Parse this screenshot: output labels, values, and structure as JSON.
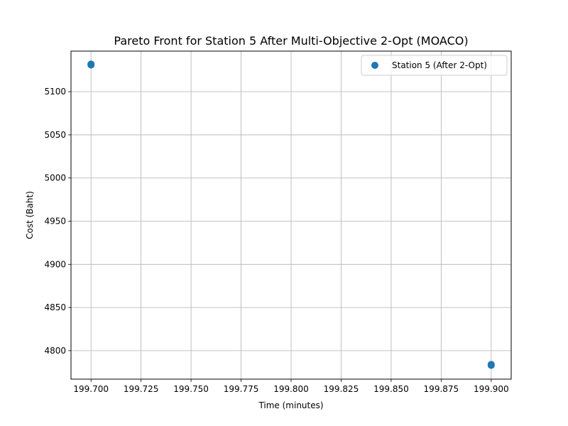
{
  "chart_data": {
    "type": "scatter",
    "title": "Pareto Front for Station 5 After Multi-Objective 2-Opt (MOACO)",
    "xlabel": "Time (minutes)",
    "ylabel": "Cost (Baht)",
    "xlim": [
      199.69,
      199.91
    ],
    "ylim": [
      4767,
      5147
    ],
    "xticks": [
      199.7,
      199.725,
      199.75,
      199.775,
      199.8,
      199.825,
      199.85,
      199.875,
      199.9
    ],
    "xtick_labels": [
      "199.700",
      "199.725",
      "199.750",
      "199.775",
      "199.800",
      "199.825",
      "199.850",
      "199.875",
      "199.900"
    ],
    "yticks": [
      4800,
      4850,
      4900,
      4950,
      5000,
      5050,
      5100
    ],
    "ytick_labels": [
      "4800",
      "4850",
      "4900",
      "4950",
      "5000",
      "5050",
      "5100"
    ],
    "grid": true,
    "legend_position": "top-right",
    "series": [
      {
        "name": "Station 5 (After 2-Opt)",
        "color": "#1f77b4",
        "x": [
          199.7,
          199.7,
          199.9,
          199.9
        ],
        "y": [
          5132,
          5131,
          4784,
          4783
        ]
      }
    ]
  }
}
